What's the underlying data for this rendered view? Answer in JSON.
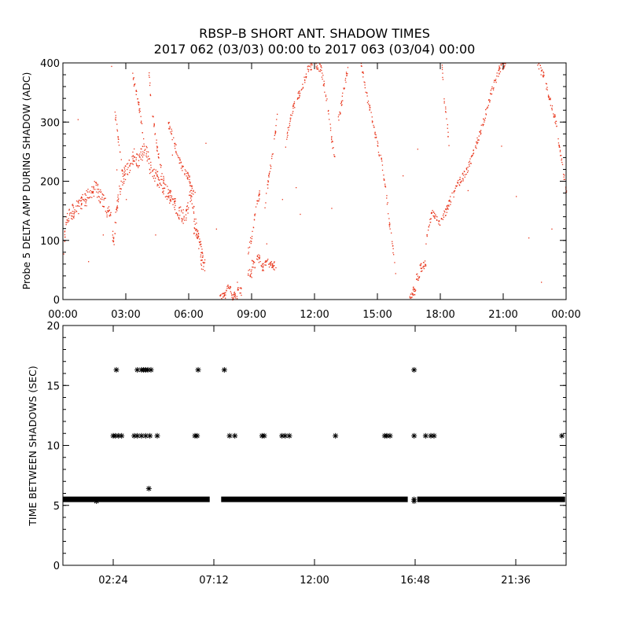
{
  "title": {
    "line1": "RBSP–B SHORT ANT. SHADOW TIMES",
    "line2": "2017 062 (03/03) 00:00 to 2017 063 (03/04) 00:00"
  },
  "colors": {
    "top_points": "#e8361c",
    "bottom_points": "#000000",
    "axes": "#000000",
    "background": "#ffffff"
  },
  "chart_data": [
    {
      "type": "scatter",
      "ylabel": "Probe 5 DELTA AMP DURING SHADOW (ADC)",
      "xlabel": "",
      "x_unit": "hours",
      "xlim": [
        0,
        24
      ],
      "ylim": [
        0,
        400
      ],
      "xtick_values": [
        0,
        3,
        6,
        9,
        12,
        15,
        18,
        21,
        24
      ],
      "xtick_labels": [
        "00:00",
        "03:00",
        "06:00",
        "09:00",
        "12:00",
        "15:00",
        "18:00",
        "21:00",
        "00:00"
      ],
      "ytick_values": [
        0,
        100,
        200,
        300,
        400
      ],
      "ytick_labels": [
        "0",
        "100",
        "200",
        "300",
        "400"
      ],
      "marker": "dot",
      "series": [
        {
          "bands": [
            [
              0.0,
              55
            ],
            [
              0.1,
              130
            ],
            [
              0.3,
              145
            ],
            [
              0.6,
              155
            ],
            [
              1.0,
              168
            ],
            [
              1.3,
              180
            ],
            [
              1.5,
              190
            ],
            [
              1.7,
              180
            ],
            [
              2.0,
              160
            ],
            [
              2.25,
              140
            ],
            [
              2.4,
              95
            ],
            [
              2.55,
              160
            ],
            [
              2.8,
              205
            ],
            [
              3.1,
              225
            ],
            [
              3.4,
              245
            ],
            [
              3.6,
              235
            ],
            [
              3.9,
              260
            ],
            [
              4.2,
              215
            ],
            [
              4.5,
              205
            ],
            [
              4.8,
              190
            ],
            [
              5.1,
              175
            ],
            [
              5.5,
              150
            ],
            [
              5.8,
              140
            ],
            [
              6.1,
              180
            ],
            [
              6.3,
              130
            ],
            [
              6.5,
              90
            ],
            [
              6.6,
              60
            ],
            [
              6.75,
              60
            ]
          ],
          "trails": [
            [
              [
                2.45,
                320
              ],
              [
                2.7,
                250
              ],
              [
                2.9,
                195
              ]
            ],
            [
              [
                3.3,
                380
              ],
              [
                3.6,
                330
              ],
              [
                3.85,
                265
              ]
            ],
            [
              [
                4.05,
                400
              ],
              [
                4.2,
                330
              ],
              [
                4.5,
                250
              ],
              [
                4.8,
                200
              ]
            ],
            [
              [
                5.0,
                300
              ],
              [
                5.6,
                230
              ],
              [
                6.0,
                205
              ],
              [
                6.3,
                175
              ]
            ],
            [
              [
                6.2,
                120
              ],
              [
                6.4,
                110
              ],
              [
                6.55,
                95
              ],
              [
                6.7,
                70
              ]
            ],
            [
              [
                8.8,
                80
              ],
              [
                9.0,
                110
              ],
              [
                9.15,
                150
              ],
              [
                9.4,
                185
              ]
            ],
            [
              [
                9.6,
                155
              ],
              [
                9.8,
                210
              ],
              [
                10.0,
                250
              ],
              [
                10.2,
                310
              ]
            ],
            [
              [
                10.6,
                265
              ],
              [
                10.9,
                320
              ],
              [
                11.2,
                345
              ],
              [
                11.4,
                360
              ],
              [
                11.6,
                385
              ],
              [
                11.9,
                400
              ]
            ],
            [
              [
                12.0,
                400
              ],
              [
                12.3,
                390
              ],
              [
                12.6,
                330
              ],
              [
                12.8,
                270
              ],
              [
                12.95,
                240
              ]
            ],
            [
              [
                13.1,
                300
              ],
              [
                13.4,
                360
              ],
              [
                13.6,
                400
              ]
            ],
            [
              [
                14.2,
                400
              ],
              [
                14.5,
                340
              ],
              [
                14.7,
                310
              ],
              [
                14.9,
                275
              ],
              [
                15.2,
                230
              ],
              [
                15.4,
                180
              ],
              [
                15.55,
                130
              ],
              [
                15.7,
                90
              ],
              [
                15.85,
                50
              ]
            ],
            [
              [
                17.3,
                100
              ],
              [
                17.6,
                150
              ],
              [
                18.0,
                130
              ],
              [
                18.3,
                155
              ],
              [
                18.6,
                180
              ],
              [
                18.9,
                200
              ],
              [
                19.2,
                215
              ],
              [
                19.5,
                240
              ],
              [
                19.8,
                275
              ],
              [
                20.1,
                310
              ],
              [
                20.4,
                350
              ],
              [
                20.8,
                390
              ],
              [
                21.1,
                400
              ]
            ],
            [
              [
                18.05,
                400
              ],
              [
                18.15,
                340
              ],
              [
                18.3,
                300
              ],
              [
                18.4,
                260
              ]
            ],
            [
              [
                22.6,
                400
              ],
              [
                22.9,
                380
              ],
              [
                23.2,
                340
              ],
              [
                23.5,
                300
              ],
              [
                23.8,
                225
              ],
              [
                24.0,
                180
              ]
            ]
          ],
          "sparse_points": [
            [
              1.2,
              65
            ],
            [
              2.3,
              395
            ],
            [
              2.55,
              220
            ],
            [
              3.0,
              170
            ],
            [
              3.7,
              300
            ],
            [
              4.4,
              110
            ],
            [
              5.2,
              245
            ],
            [
              6.8,
              265
            ],
            [
              7.3,
              120
            ],
            [
              8.3,
              30
            ],
            [
              9.7,
              95
            ],
            [
              10.45,
              170
            ],
            [
              11.1,
              190
            ],
            [
              11.3,
              145
            ],
            [
              12.8,
              155
            ],
            [
              16.2,
              210
            ],
            [
              16.9,
              255
            ],
            [
              19.3,
              185
            ],
            [
              20.9,
              260
            ],
            [
              21.6,
              175
            ],
            [
              22.2,
              105
            ],
            [
              22.8,
              30
            ],
            [
              23.3,
              120
            ],
            [
              0.7,
              305
            ],
            [
              1.9,
              110
            ]
          ],
          "clumps": [
            [
              7.55,
              5
            ],
            [
              7.7,
              10
            ],
            [
              7.9,
              20
            ],
            [
              8.05,
              5
            ],
            [
              8.2,
              8
            ],
            [
              8.4,
              15
            ],
            [
              8.9,
              45
            ],
            [
              9.05,
              60
            ],
            [
              9.3,
              70
            ],
            [
              9.5,
              55
            ],
            [
              9.7,
              65
            ],
            [
              9.9,
              62
            ],
            [
              10.05,
              58
            ],
            [
              16.6,
              5
            ],
            [
              16.75,
              15
            ],
            [
              16.9,
              40
            ],
            [
              17.05,
              55
            ],
            [
              17.2,
              60
            ]
          ]
        }
      ]
    },
    {
      "type": "scatter",
      "ylabel": "TIME BETWEEN SHADOWS (SEC)",
      "xlabel": "",
      "x_unit": "hours",
      "xlim": [
        0,
        24
      ],
      "ylim": [
        0,
        20
      ],
      "xtick_values": [
        2.4,
        7.2,
        12.0,
        16.8,
        21.6
      ],
      "xtick_labels": [
        "02:24",
        "07:12",
        "12:00",
        "16:48",
        "21:36"
      ],
      "ytick_values": [
        0,
        5,
        10,
        15,
        20
      ],
      "ytick_labels": [
        "0",
        "5",
        "10",
        "15",
        "20"
      ],
      "marker": "asterisk",
      "series": [
        {
          "baseline_value": 5.5,
          "baseline_segments": [
            [
              0.0,
              7.0
            ],
            [
              7.55,
              16.45
            ],
            [
              16.9,
              23.95
            ]
          ],
          "baseline_gap_points": [
            16.75
          ],
          "points_10_8": [
            2.4,
            2.5,
            2.65,
            2.8,
            3.4,
            3.55,
            3.75,
            3.95,
            4.15,
            4.5,
            6.3,
            6.4,
            7.95,
            8.2,
            9.5,
            9.6,
            10.45,
            10.6,
            10.8,
            13.0,
            15.35,
            15.45,
            15.6,
            16.75,
            17.3,
            17.55,
            17.7,
            23.8
          ],
          "points_16_3": [
            2.55,
            3.55,
            3.75,
            3.85,
            3.95,
            4.05,
            4.2,
            6.45,
            7.7,
            16.75
          ],
          "points_6_4": [
            4.1
          ],
          "points_5_4": [
            1.6,
            16.75
          ]
        }
      ]
    }
  ]
}
